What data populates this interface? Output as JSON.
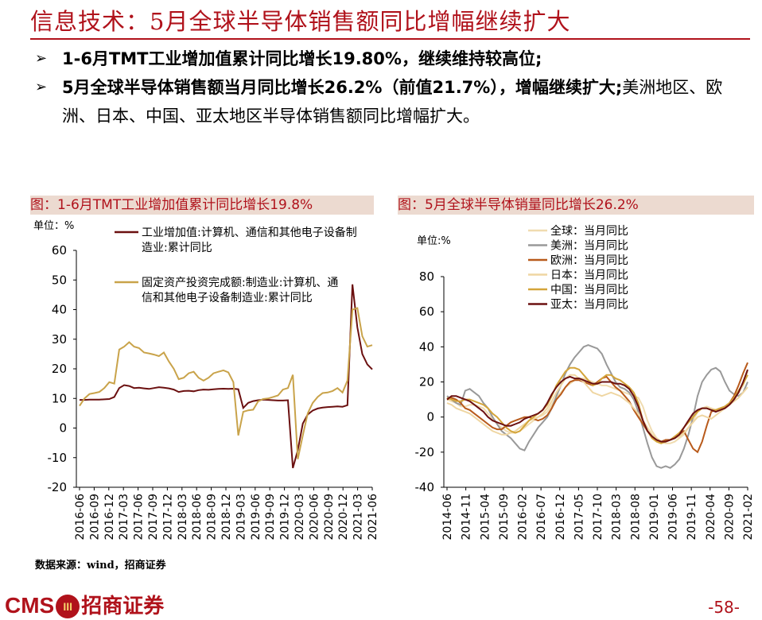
{
  "header": {
    "title": "信息技术：5月全球半导体销售额同比增幅继续扩大"
  },
  "bullets": [
    {
      "arrow": "➢",
      "bold": "1-6月TMT工业增加值累计同比增长19.80%，继续维持较高位;",
      "plain": ""
    },
    {
      "arrow": "➢",
      "bold": "5月全球半导体销售额当月同比增长26.2%（前值21.7%），增幅继续扩大;",
      "plain": "美洲地区、欧洲、日本、中国、亚太地区半导体销售额同比增幅扩大。"
    }
  ],
  "left_chart_title": "图：1-6月TMT工业增加值累计同比增长19.8%",
  "right_chart_title": "图：5月全球半导体销量同比增长26.2%",
  "source": "数据来源：wind，招商证券",
  "footer": {
    "logo_text": "CMS",
    "logo_emblem": "III",
    "logo_cn": "招商证券",
    "page": "-58-"
  },
  "colors": {
    "accent": "#b0121b",
    "panel_bg": "#ecdad0",
    "dark_line": "#6b1010",
    "gold_line": "#c9a34a",
    "grey_line": "#999999",
    "orange_line": "#b85a1b",
    "light_line": "#efd6a2"
  },
  "chart_data": [
    {
      "type": "line",
      "unit_label": "单位：%",
      "ylim": [
        -20,
        60
      ],
      "yticks": [
        60,
        50,
        40,
        30,
        20,
        10,
        0,
        -10,
        -20
      ],
      "xtick_labels": [
        "2016-06",
        "2016-09",
        "2016-12",
        "2017-03",
        "2017-06",
        "2017-09",
        "2017-12",
        "2018-03",
        "2018-06",
        "2018-09",
        "2018-12",
        "2019-03",
        "2019-06",
        "2019-09",
        "2019-12",
        "2020-03",
        "2020-06",
        "2020-09",
        "2020-12",
        "2021-03",
        "2021-06"
      ],
      "legend": [
        "工业增加值:计算机、通信和其他电子设备制造业:累计同比",
        "固定资产投资完成额:制造业:计算机、通信和其他电子设备制造业:累计同比"
      ],
      "series": [
        {
          "name": "工业增加值:计算机、通信和其他电子设备制造业:累计同比",
          "color": "#6b1010",
          "values": [
            9.5,
            9.5,
            9.6,
            9.6,
            9.6,
            9.7,
            9.8,
            10.5,
            13.5,
            14.5,
            14.2,
            13.5,
            13.6,
            13.4,
            13.2,
            13.5,
            13.8,
            13.6,
            13.4,
            13.0,
            12.2,
            12.5,
            12.6,
            12.4,
            12.8,
            13.0,
            12.9,
            13.1,
            13.2,
            13.3,
            13.2,
            13.3,
            13.1,
            6.8,
            8.5,
            9.1,
            9.4,
            9.6,
            9.5,
            9.4,
            9.3,
            9.3,
            9.4,
            -13.5,
            -7.5,
            1.5,
            4.6,
            5.9,
            6.6,
            6.9,
            7.1,
            7.2,
            7.3,
            7.2,
            7.7,
            48.5,
            34.0,
            25.0,
            21.5,
            19.8
          ]
        },
        {
          "name": "固定资产投资完成额:制造业:计算机、通信和其他电子设备制造业:累计同比",
          "color": "#c9a34a",
          "values": [
            7.5,
            10.0,
            11.5,
            11.8,
            12.2,
            13.5,
            15.5,
            15.0,
            26.5,
            27.5,
            29.0,
            27.5,
            27.0,
            25.5,
            25.2,
            24.8,
            24.3,
            25.5,
            22.5,
            20.0,
            16.5,
            17.0,
            18.5,
            19.0,
            17.0,
            16.0,
            17.0,
            18.5,
            19.0,
            19.5,
            18.8,
            15.5,
            -2.5,
            5.5,
            6.0,
            6.2,
            9.0,
            9.8,
            10.0,
            10.5,
            11.0,
            13.0,
            13.5,
            18.0,
            -10.5,
            -2.5,
            5.0,
            8.5,
            10.5,
            11.8,
            12.0,
            12.5,
            13.5,
            12.0,
            16.0,
            40.0,
            40.5,
            31.0,
            27.5,
            28.0
          ]
        }
      ]
    },
    {
      "type": "line",
      "unit_label": "单位:%",
      "ylim": [
        -40,
        80
      ],
      "yticks": [
        80,
        60,
        40,
        20,
        0,
        -20,
        -40
      ],
      "xtick_labels": [
        "2014-06",
        "2014-11",
        "2015-04",
        "2015-09",
        "2016-02",
        "2016-07",
        "2016-12",
        "2017-05",
        "2017-10",
        "2018-03",
        "2018-08",
        "2019-01",
        "2019-06",
        "2019-11",
        "2020-04",
        "2020-09",
        "2021-02"
      ],
      "legend": [
        "全球：当月同比",
        "美洲：当月同比",
        "欧洲：当月同比",
        "日本：当月同比",
        "中国：当月同比",
        "亚太：当月同比"
      ],
      "series": [
        {
          "name": "全球：当月同比",
          "color": "#f0dcb0",
          "values": [
            10,
            9,
            8,
            6,
            6,
            7,
            7,
            6,
            5,
            2,
            -1,
            -4,
            -6,
            -8,
            -9,
            -9,
            -8,
            -6,
            -4,
            -2,
            0,
            1,
            3,
            7,
            11,
            14,
            17,
            19,
            21,
            22,
            22,
            21,
            20,
            19,
            18,
            18,
            17,
            16,
            15,
            14,
            13,
            12,
            11,
            6,
            -2,
            -8,
            -12,
            -14,
            -15,
            -15,
            -14,
            -12,
            -10,
            -6,
            -2,
            3,
            5,
            6,
            5,
            4,
            4,
            5,
            7,
            10,
            14,
            18,
            26
          ]
        },
        {
          "name": "美洲：当月同比",
          "color": "#999999",
          "values": [
            12,
            10,
            8,
            7,
            15,
            16,
            14,
            12,
            8,
            5,
            0,
            -4,
            -8,
            -10,
            -12,
            -15,
            -18,
            -19,
            -14,
            -10,
            -6,
            -3,
            0,
            5,
            12,
            18,
            25,
            30,
            34,
            37,
            40,
            41,
            40,
            39,
            36,
            30,
            25,
            20,
            17,
            16,
            14,
            10,
            3,
            -6,
            -15,
            -23,
            -28,
            -29,
            -28,
            -29,
            -27,
            -24,
            -18,
            -10,
            0,
            12,
            20,
            24,
            27,
            28,
            26,
            20,
            15,
            13,
            12,
            14,
            20
          ]
        },
        {
          "name": "欧洲：当月同比",
          "color": "#b85a1b",
          "values": [
            10,
            11,
            10,
            8,
            5,
            4,
            2,
            0,
            -2,
            -4,
            -6,
            -7,
            -7,
            -5,
            -3,
            -2,
            -1,
            0,
            0,
            -1,
            -2,
            -1,
            1,
            5,
            10,
            13,
            17,
            20,
            21,
            21,
            20,
            19,
            18,
            20,
            22,
            23,
            20,
            17,
            15,
            12,
            9,
            4,
            0,
            -4,
            -8,
            -11,
            -13,
            -14,
            -13,
            -13,
            -12,
            -10,
            -8,
            -13,
            -18,
            -20,
            -14,
            -5,
            3,
            4,
            5,
            6,
            8,
            12,
            18,
            25,
            31
          ]
        },
        {
          "name": "日本：当月同比",
          "color": "#efd6a2",
          "values": [
            8,
            7,
            5,
            4,
            3,
            2,
            0,
            -2,
            -4,
            -6,
            -8,
            -9,
            -10,
            -10,
            -9,
            -8,
            -6,
            -4,
            -2,
            -1,
            0,
            2,
            5,
            9,
            14,
            18,
            22,
            24,
            24,
            22,
            20,
            17,
            14,
            13,
            12,
            13,
            14,
            13,
            12,
            10,
            8,
            5,
            2,
            -2,
            -6,
            -10,
            -12,
            -14,
            -14,
            -13,
            -12,
            -11,
            -9,
            -6,
            -3,
            0,
            1,
            0,
            -1,
            1,
            3,
            5,
            7,
            9,
            11,
            14,
            17
          ]
        },
        {
          "name": "中国：当月同比",
          "color": "#d4a53a",
          "values": [
            11,
            10,
            9,
            9,
            10,
            10,
            9,
            8,
            7,
            5,
            2,
            0,
            -3,
            -6,
            -8,
            -9,
            -8,
            -5,
            -2,
            0,
            2,
            4,
            7,
            12,
            18,
            22,
            26,
            28,
            28,
            27,
            24,
            21,
            18,
            19,
            22,
            24,
            24,
            22,
            21,
            19,
            17,
            14,
            8,
            -2,
            -8,
            -12,
            -14,
            -15,
            -14,
            -13,
            -11,
            -9,
            -6,
            -3,
            0,
            3,
            5,
            5,
            4,
            4,
            5,
            6,
            8,
            11,
            15,
            19,
            24
          ]
        },
        {
          "name": "亚太：当月同比",
          "color": "#6b1010",
          "values": [
            10,
            12,
            12,
            11,
            10,
            9,
            7,
            5,
            3,
            0,
            -2,
            -3,
            -4,
            -5,
            -5,
            -4,
            -3,
            -1,
            0,
            1,
            2,
            4,
            8,
            13,
            17,
            20,
            22,
            23,
            22,
            22,
            21,
            20,
            19,
            19,
            20,
            20,
            20,
            19,
            19,
            18,
            16,
            12,
            6,
            -2,
            -8,
            -11,
            -13,
            -14,
            -14,
            -13,
            -12,
            -10,
            -6,
            -2,
            2,
            4,
            5,
            5,
            4,
            3,
            4,
            5,
            7,
            10,
            14,
            20,
            27
          ]
        }
      ]
    }
  ]
}
